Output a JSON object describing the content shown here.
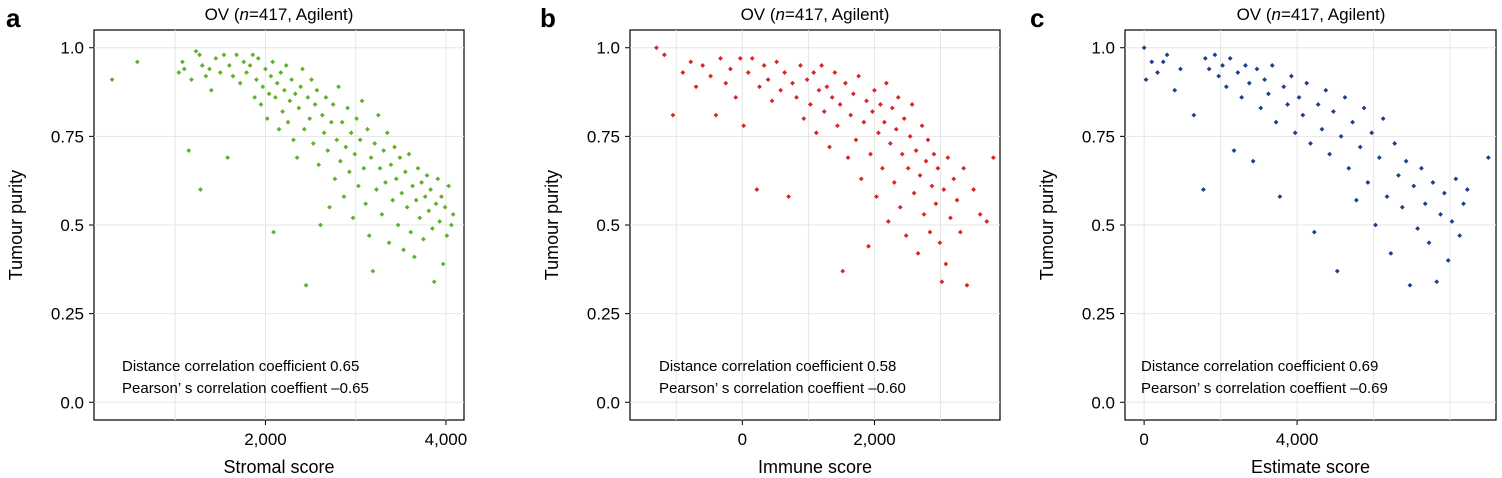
{
  "panels": [
    {
      "letter": "a",
      "title_prefix": "OV (",
      "title_n": "n",
      "title_suffix": "=417, Agilent)",
      "stats_line1": "Distance correlation coefficient 0.65",
      "stats_line2": "Pearson’ s correlation coeffient –0.65"
    },
    {
      "letter": "b",
      "title_prefix": "OV (",
      "title_n": "n",
      "title_suffix": "=417, Agilent)",
      "stats_line1": "Distance correlation coefficient 0.58",
      "stats_line2": "Pearson’ s correlation coeffient –0.60"
    },
    {
      "letter": "c",
      "title_prefix": "OV (",
      "title_n": "n",
      "title_suffix": "=417, Agilent)",
      "stats_line1": "Distance correlation coefficient 0.69",
      "stats_line2": "Pearson’ s correlation coeffient –0.69"
    }
  ],
  "chart_data": [
    {
      "type": "scatter",
      "title": "OV (n=417, Agilent)",
      "xlabel": "Stromal score",
      "ylabel": "Tumour purity",
      "xlim": [
        100,
        4200
      ],
      "ylim": [
        -0.05,
        1.05
      ],
      "x_ticks": [
        2000,
        4000
      ],
      "x_tick_labels": [
        "2,000",
        "4,000"
      ],
      "x_minor_gridlines": [
        1000,
        3000
      ],
      "y_ticks": [
        0.0,
        0.25,
        0.5,
        0.75,
        1.0
      ],
      "y_tick_labels": [
        "0.0",
        "0.25",
        "0.5",
        "0.75",
        "1.0"
      ],
      "grid": true,
      "color": "#5fb12a",
      "points": [
        [
          300,
          0.91
        ],
        [
          580,
          0.96
        ],
        [
          1040,
          0.93
        ],
        [
          1080,
          0.96
        ],
        [
          1100,
          0.94
        ],
        [
          1150,
          0.71
        ],
        [
          1180,
          0.91
        ],
        [
          1230,
          0.99
        ],
        [
          1270,
          0.98
        ],
        [
          1280,
          0.6
        ],
        [
          1300,
          0.95
        ],
        [
          1340,
          0.92
        ],
        [
          1380,
          0.94
        ],
        [
          1400,
          0.88
        ],
        [
          1450,
          0.97
        ],
        [
          1500,
          0.93
        ],
        [
          1540,
          0.98
        ],
        [
          1580,
          0.69
        ],
        [
          1600,
          0.95
        ],
        [
          1640,
          0.92
        ],
        [
          1680,
          0.98
        ],
        [
          1720,
          0.9
        ],
        [
          1760,
          0.96
        ],
        [
          1790,
          0.93
        ],
        [
          1830,
          0.95
        ],
        [
          1860,
          0.98
        ],
        [
          1880,
          0.86
        ],
        [
          1900,
          0.91
        ],
        [
          1920,
          0.97
        ],
        [
          1950,
          0.84
        ],
        [
          1970,
          0.89
        ],
        [
          2000,
          0.94
        ],
        [
          2020,
          0.8
        ],
        [
          2040,
          0.87
        ],
        [
          2060,
          0.92
        ],
        [
          2080,
          0.96
        ],
        [
          2090,
          0.48
        ],
        [
          2110,
          0.86
        ],
        [
          2130,
          0.9
        ],
        [
          2150,
          0.77
        ],
        [
          2170,
          0.93
        ],
        [
          2190,
          0.82
        ],
        [
          2210,
          0.88
        ],
        [
          2230,
          0.95
        ],
        [
          2250,
          0.79
        ],
        [
          2270,
          0.85
        ],
        [
          2290,
          0.91
        ],
        [
          2310,
          0.74
        ],
        [
          2330,
          0.87
        ],
        [
          2350,
          0.69
        ],
        [
          2370,
          0.83
        ],
        [
          2390,
          0.89
        ],
        [
          2410,
          0.94
        ],
        [
          2430,
          0.77
        ],
        [
          2450,
          0.33
        ],
        [
          2470,
          0.86
        ],
        [
          2490,
          0.8
        ],
        [
          2510,
          0.91
        ],
        [
          2530,
          0.73
        ],
        [
          2550,
          0.84
        ],
        [
          2570,
          0.88
        ],
        [
          2590,
          0.67
        ],
        [
          2610,
          0.5
        ],
        [
          2630,
          0.81
        ],
        [
          2650,
          0.76
        ],
        [
          2670,
          0.86
        ],
        [
          2690,
          0.71
        ],
        [
          2710,
          0.55
        ],
        [
          2730,
          0.79
        ],
        [
          2750,
          0.84
        ],
        [
          2770,
          0.63
        ],
        [
          2790,
          0.74
        ],
        [
          2810,
          0.89
        ],
        [
          2830,
          0.68
        ],
        [
          2850,
          0.79
        ],
        [
          2870,
          0.58
        ],
        [
          2890,
          0.72
        ],
        [
          2910,
          0.83
        ],
        [
          2930,
          0.65
        ],
        [
          2950,
          0.76
        ],
        [
          2970,
          0.52
        ],
        [
          2990,
          0.7
        ],
        [
          3010,
          0.8
        ],
        [
          3030,
          0.61
        ],
        [
          3050,
          0.74
        ],
        [
          3070,
          0.85
        ],
        [
          3090,
          0.66
        ],
        [
          3110,
          0.56
        ],
        [
          3130,
          0.77
        ],
        [
          3150,
          0.47
        ],
        [
          3170,
          0.69
        ],
        [
          3190,
          0.37
        ],
        [
          3210,
          0.73
        ],
        [
          3230,
          0.6
        ],
        [
          3250,
          0.81
        ],
        [
          3270,
          0.66
        ],
        [
          3290,
          0.53
        ],
        [
          3310,
          0.71
        ],
        [
          3330,
          0.62
        ],
        [
          3350,
          0.76
        ],
        [
          3370,
          0.45
        ],
        [
          3390,
          0.67
        ],
        [
          3410,
          0.57
        ],
        [
          3430,
          0.72
        ],
        [
          3450,
          0.63
        ],
        [
          3470,
          0.5
        ],
        [
          3490,
          0.69
        ],
        [
          3510,
          0.59
        ],
        [
          3530,
          0.43
        ],
        [
          3550,
          0.65
        ],
        [
          3570,
          0.55
        ],
        [
          3590,
          0.7
        ],
        [
          3610,
          0.48
        ],
        [
          3630,
          0.61
        ],
        [
          3650,
          0.41
        ],
        [
          3670,
          0.57
        ],
        [
          3690,
          0.66
        ],
        [
          3710,
          0.52
        ],
        [
          3730,
          0.62
        ],
        [
          3750,
          0.46
        ],
        [
          3770,
          0.58
        ],
        [
          3790,
          0.64
        ],
        [
          3810,
          0.54
        ],
        [
          3830,
          0.6
        ],
        [
          3850,
          0.49
        ],
        [
          3870,
          0.34
        ],
        [
          3890,
          0.56
        ],
        [
          3910,
          0.63
        ],
        [
          3930,
          0.51
        ],
        [
          3950,
          0.58
        ],
        [
          3970,
          0.39
        ],
        [
          3990,
          0.55
        ],
        [
          4010,
          0.47
        ],
        [
          4030,
          0.61
        ],
        [
          4060,
          0.5
        ],
        [
          4080,
          0.53
        ]
      ]
    },
    {
      "type": "scatter",
      "title": "OV (n=417, Agilent)",
      "xlabel": "Immune score",
      "ylabel": "Tumour purity",
      "xlim": [
        -1700,
        3900
      ],
      "ylim": [
        -0.05,
        1.05
      ],
      "x_ticks": [
        0,
        2000
      ],
      "x_tick_labels": [
        "0",
        "2,000"
      ],
      "x_minor_gridlines": [
        -1000,
        1000,
        3000
      ],
      "y_ticks": [
        0.0,
        0.25,
        0.5,
        0.75,
        1.0
      ],
      "y_tick_labels": [
        "0.0",
        "0.25",
        "0.5",
        "0.75",
        "1.0"
      ],
      "grid": true,
      "color": "#d9242a",
      "points": [
        [
          -1300,
          1.0
        ],
        [
          -1180,
          0.98
        ],
        [
          -1050,
          0.81
        ],
        [
          -900,
          0.93
        ],
        [
          -780,
          0.96
        ],
        [
          -700,
          0.89
        ],
        [
          -600,
          0.95
        ],
        [
          -480,
          0.92
        ],
        [
          -400,
          0.81
        ],
        [
          -330,
          0.97
        ],
        [
          -250,
          0.9
        ],
        [
          -180,
          0.94
        ],
        [
          -100,
          0.86
        ],
        [
          -30,
          0.97
        ],
        [
          20,
          0.78
        ],
        [
          90,
          0.93
        ],
        [
          150,
          0.97
        ],
        [
          220,
          0.6
        ],
        [
          260,
          0.89
        ],
        [
          330,
          0.95
        ],
        [
          390,
          0.91
        ],
        [
          450,
          0.85
        ],
        [
          520,
          0.96
        ],
        [
          580,
          0.88
        ],
        [
          640,
          0.93
        ],
        [
          700,
          0.58
        ],
        [
          760,
          0.9
        ],
        [
          820,
          0.86
        ],
        [
          880,
          0.95
        ],
        [
          930,
          0.8
        ],
        [
          980,
          0.91
        ],
        [
          1030,
          0.84
        ],
        [
          1080,
          0.93
        ],
        [
          1120,
          0.76
        ],
        [
          1160,
          0.88
        ],
        [
          1200,
          0.95
        ],
        [
          1240,
          0.82
        ],
        [
          1280,
          0.89
        ],
        [
          1320,
          0.72
        ],
        [
          1360,
          0.86
        ],
        [
          1400,
          0.93
        ],
        [
          1440,
          0.78
        ],
        [
          1480,
          0.84
        ],
        [
          1520,
          0.37
        ],
        [
          1560,
          0.9
        ],
        [
          1600,
          0.69
        ],
        [
          1640,
          0.81
        ],
        [
          1680,
          0.87
        ],
        [
          1720,
          0.74
        ],
        [
          1760,
          0.92
        ],
        [
          1800,
          0.63
        ],
        [
          1840,
          0.79
        ],
        [
          1880,
          0.85
        ],
        [
          1910,
          0.44
        ],
        [
          1940,
          0.7
        ],
        [
          1970,
          0.82
        ],
        [
          2000,
          0.88
        ],
        [
          2030,
          0.58
        ],
        [
          2060,
          0.76
        ],
        [
          2090,
          0.84
        ],
        [
          2120,
          0.66
        ],
        [
          2150,
          0.79
        ],
        [
          2180,
          0.9
        ],
        [
          2210,
          0.51
        ],
        [
          2240,
          0.73
        ],
        [
          2270,
          0.83
        ],
        [
          2300,
          0.62
        ],
        [
          2330,
          0.77
        ],
        [
          2360,
          0.86
        ],
        [
          2390,
          0.55
        ],
        [
          2420,
          0.7
        ],
        [
          2450,
          0.8
        ],
        [
          2480,
          0.47
        ],
        [
          2510,
          0.66
        ],
        [
          2540,
          0.75
        ],
        [
          2570,
          0.84
        ],
        [
          2600,
          0.59
        ],
        [
          2630,
          0.71
        ],
        [
          2660,
          0.42
        ],
        [
          2690,
          0.64
        ],
        [
          2720,
          0.78
        ],
        [
          2750,
          0.53
        ],
        [
          2780,
          0.68
        ],
        [
          2810,
          0.74
        ],
        [
          2840,
          0.48
        ],
        [
          2870,
          0.61
        ],
        [
          2900,
          0.7
        ],
        [
          2930,
          0.56
        ],
        [
          2960,
          0.66
        ],
        [
          2990,
          0.45
        ],
        [
          3020,
          0.34
        ],
        [
          3050,
          0.6
        ],
        [
          3080,
          0.39
        ],
        [
          3110,
          0.69
        ],
        [
          3150,
          0.52
        ],
        [
          3200,
          0.63
        ],
        [
          3250,
          0.57
        ],
        [
          3300,
          0.48
        ],
        [
          3350,
          0.66
        ],
        [
          3400,
          0.33
        ],
        [
          3500,
          0.6
        ],
        [
          3600,
          0.53
        ],
        [
          3700,
          0.51
        ],
        [
          3800,
          0.69
        ]
      ]
    },
    {
      "type": "scatter",
      "title": "OV (n=417, Agilent)",
      "xlabel": "Estimate score",
      "ylabel": "Tumour purity",
      "xlim": [
        -500,
        9200
      ],
      "ylim": [
        -0.05,
        1.05
      ],
      "x_ticks": [
        0,
        4000
      ],
      "x_tick_labels": [
        "0",
        "4,000"
      ],
      "x_minor_gridlines": [
        2000,
        6000,
        8000
      ],
      "y_ticks": [
        0.0,
        0.25,
        0.5,
        0.75,
        1.0
      ],
      "y_tick_labels": [
        "0.0",
        "0.25",
        "0.5",
        "0.75",
        "1.0"
      ],
      "grid": true,
      "color": "#1d3f8f",
      "points": [
        [
          0,
          1.0
        ],
        [
          50,
          0.91
        ],
        [
          200,
          0.96
        ],
        [
          350,
          0.93
        ],
        [
          500,
          0.96
        ],
        [
          600,
          0.98
        ],
        [
          800,
          0.88
        ],
        [
          950,
          0.94
        ],
        [
          1300,
          0.81
        ],
        [
          1550,
          0.6
        ],
        [
          1600,
          0.97
        ],
        [
          1700,
          0.94
        ],
        [
          1850,
          0.98
        ],
        [
          1950,
          0.92
        ],
        [
          2050,
          0.95
        ],
        [
          2150,
          0.89
        ],
        [
          2250,
          0.97
        ],
        [
          2350,
          0.71
        ],
        [
          2450,
          0.93
        ],
        [
          2550,
          0.86
        ],
        [
          2650,
          0.95
        ],
        [
          2750,
          0.9
        ],
        [
          2850,
          0.68
        ],
        [
          2950,
          0.94
        ],
        [
          3050,
          0.83
        ],
        [
          3150,
          0.91
        ],
        [
          3250,
          0.87
        ],
        [
          3350,
          0.95
        ],
        [
          3450,
          0.79
        ],
        [
          3550,
          0.58
        ],
        [
          3650,
          0.89
        ],
        [
          3750,
          0.84
        ],
        [
          3850,
          0.92
        ],
        [
          3950,
          0.76
        ],
        [
          4050,
          0.86
        ],
        [
          4150,
          0.81
        ],
        [
          4250,
          0.9
        ],
        [
          4350,
          0.73
        ],
        [
          4450,
          0.48
        ],
        [
          4550,
          0.84
        ],
        [
          4650,
          0.77
        ],
        [
          4750,
          0.88
        ],
        [
          4850,
          0.7
        ],
        [
          4950,
          0.82
        ],
        [
          5050,
          0.37
        ],
        [
          5150,
          0.75
        ],
        [
          5250,
          0.86
        ],
        [
          5350,
          0.66
        ],
        [
          5450,
          0.79
        ],
        [
          5550,
          0.57
        ],
        [
          5650,
          0.72
        ],
        [
          5750,
          0.83
        ],
        [
          5850,
          0.62
        ],
        [
          5950,
          0.76
        ],
        [
          6050,
          0.5
        ],
        [
          6150,
          0.69
        ],
        [
          6250,
          0.8
        ],
        [
          6350,
          0.58
        ],
        [
          6450,
          0.42
        ],
        [
          6550,
          0.73
        ],
        [
          6650,
          0.64
        ],
        [
          6750,
          0.55
        ],
        [
          6850,
          0.68
        ],
        [
          6950,
          0.33
        ],
        [
          7050,
          0.61
        ],
        [
          7150,
          0.49
        ],
        [
          7250,
          0.66
        ],
        [
          7350,
          0.56
        ],
        [
          7450,
          0.45
        ],
        [
          7550,
          0.62
        ],
        [
          7650,
          0.34
        ],
        [
          7750,
          0.53
        ],
        [
          7850,
          0.59
        ],
        [
          7950,
          0.4
        ],
        [
          8050,
          0.51
        ],
        [
          8150,
          0.63
        ],
        [
          8250,
          0.47
        ],
        [
          8350,
          0.56
        ],
        [
          8450,
          0.6
        ],
        [
          9000,
          0.69
        ]
      ]
    }
  ]
}
